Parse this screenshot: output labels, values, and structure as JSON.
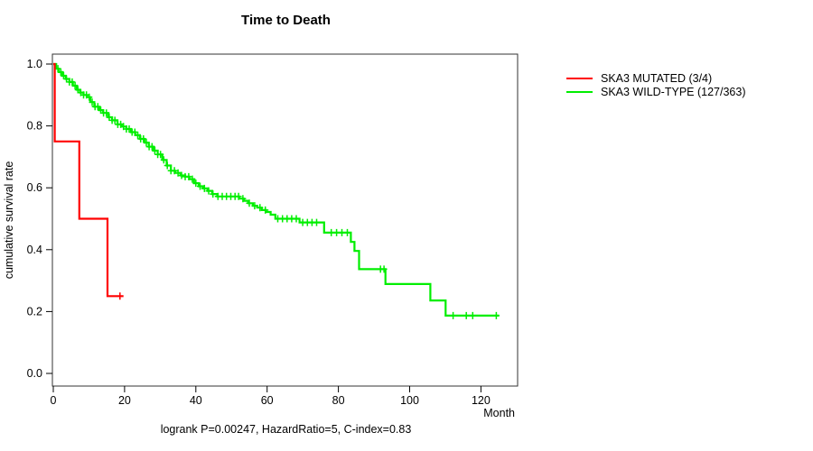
{
  "title": "Time to Death",
  "caption": "logrank P=0.00247, HazardRatio=5, C-index=0.83",
  "axes": {
    "x_label": "Month",
    "y_label": "cumulative survival rate",
    "x_ticks": [
      0,
      20,
      40,
      60,
      80,
      100,
      120
    ],
    "y_ticks": [
      "0.0",
      "0.2",
      "0.4",
      "0.6",
      "0.8",
      "1.0"
    ]
  },
  "legend": [
    {
      "label": "SKA3 MUTATED (3/4)",
      "color": "#ff0000"
    },
    {
      "label": "SKA3 WILD-TYPE (127/363)",
      "color": "#00ee00"
    }
  ],
  "chart_data": {
    "type": "line",
    "subtype": "kaplan-meier-step",
    "title": "Time to Death",
    "xlabel": "Month",
    "ylabel": "cumulative survival rate",
    "xlim": [
      0,
      130
    ],
    "ylim": [
      0.0,
      1.03
    ],
    "grid": false,
    "legend_position": "right-outside",
    "series": [
      {
        "name": "SKA3 WILD-TYPE (127/363)",
        "color": "#00ee00",
        "steps": [
          [
            0,
            1.0
          ],
          [
            0.8,
            0.985
          ],
          [
            1.5,
            0.974
          ],
          [
            2.5,
            0.962
          ],
          [
            3.5,
            0.952
          ],
          [
            4.5,
            0.942
          ],
          [
            5.5,
            0.93
          ],
          [
            6.6,
            0.917
          ],
          [
            7.5,
            0.908
          ],
          [
            8.5,
            0.9
          ],
          [
            9.5,
            0.893
          ],
          [
            10.4,
            0.877
          ],
          [
            11.5,
            0.862
          ],
          [
            12.9,
            0.851
          ],
          [
            14,
            0.842
          ],
          [
            15.4,
            0.828
          ],
          [
            16.5,
            0.818
          ],
          [
            18,
            0.805
          ],
          [
            19.2,
            0.798
          ],
          [
            20.5,
            0.79
          ],
          [
            21.8,
            0.78
          ],
          [
            23,
            0.77
          ],
          [
            24.3,
            0.758
          ],
          [
            25.6,
            0.746
          ],
          [
            26.8,
            0.733
          ],
          [
            28.1,
            0.72
          ],
          [
            29.3,
            0.708
          ],
          [
            30.6,
            0.69
          ],
          [
            31.8,
            0.672
          ],
          [
            33,
            0.655
          ],
          [
            34.2,
            0.648
          ],
          [
            35.7,
            0.64
          ],
          [
            37,
            0.636
          ],
          [
            38.2,
            0.628
          ],
          [
            39.5,
            0.615
          ],
          [
            40.8,
            0.605
          ],
          [
            42,
            0.598
          ],
          [
            43.3,
            0.59
          ],
          [
            44.6,
            0.58
          ],
          [
            46,
            0.572
          ],
          [
            52.2,
            0.565
          ],
          [
            53.5,
            0.558
          ],
          [
            54.7,
            0.55
          ],
          [
            56,
            0.542
          ],
          [
            57.2,
            0.536
          ],
          [
            58.5,
            0.528
          ],
          [
            59.7,
            0.522
          ],
          [
            61,
            0.513
          ],
          [
            62.3,
            0.5
          ],
          [
            69.1,
            0.488
          ],
          [
            76,
            0.455
          ],
          [
            83.5,
            0.425
          ],
          [
            84.5,
            0.396
          ],
          [
            85.8,
            0.337
          ],
          [
            93.2,
            0.289
          ],
          [
            105.8,
            0.236
          ],
          [
            110.1,
            0.187
          ],
          [
            125.1,
            0.187
          ]
        ],
        "censor_months": [
          1.3,
          2.1,
          2.9,
          3.7,
          4.5,
          5.3,
          6.1,
          6.9,
          7.7,
          8.5,
          9.3,
          10.1,
          10.9,
          11.7,
          12.5,
          13.3,
          14.1,
          14.9,
          15.7,
          16.5,
          17.3,
          18.1,
          18.9,
          19.7,
          20.5,
          21.3,
          22.1,
          22.9,
          23.7,
          24.5,
          25.3,
          26.1,
          26.9,
          27.7,
          28.5,
          29.3,
          30.1,
          31,
          32,
          33,
          34,
          35,
          36,
          37,
          38,
          39,
          40,
          41.2,
          42.4,
          43.6,
          44.8,
          46.2,
          47.4,
          48.6,
          49.8,
          51,
          52,
          53.2,
          55,
          56.5,
          58,
          59.5,
          63,
          64.3,
          65.6,
          66.9,
          68.2,
          70,
          71.3,
          72.6,
          73.9,
          78,
          79.5,
          81,
          82.5,
          91.8,
          92.8,
          112.2,
          115.9,
          117.7,
          124.3
        ]
      },
      {
        "name": "SKA3 MUTATED (3/4)",
        "color": "#ff0000",
        "steps": [
          [
            0,
            1.0
          ],
          [
            0.4,
            0.75
          ],
          [
            7.3,
            0.5
          ],
          [
            15.2,
            0.25
          ],
          [
            19.7,
            0.25
          ]
        ],
        "censor_months": [
          18.7
        ]
      }
    ]
  }
}
